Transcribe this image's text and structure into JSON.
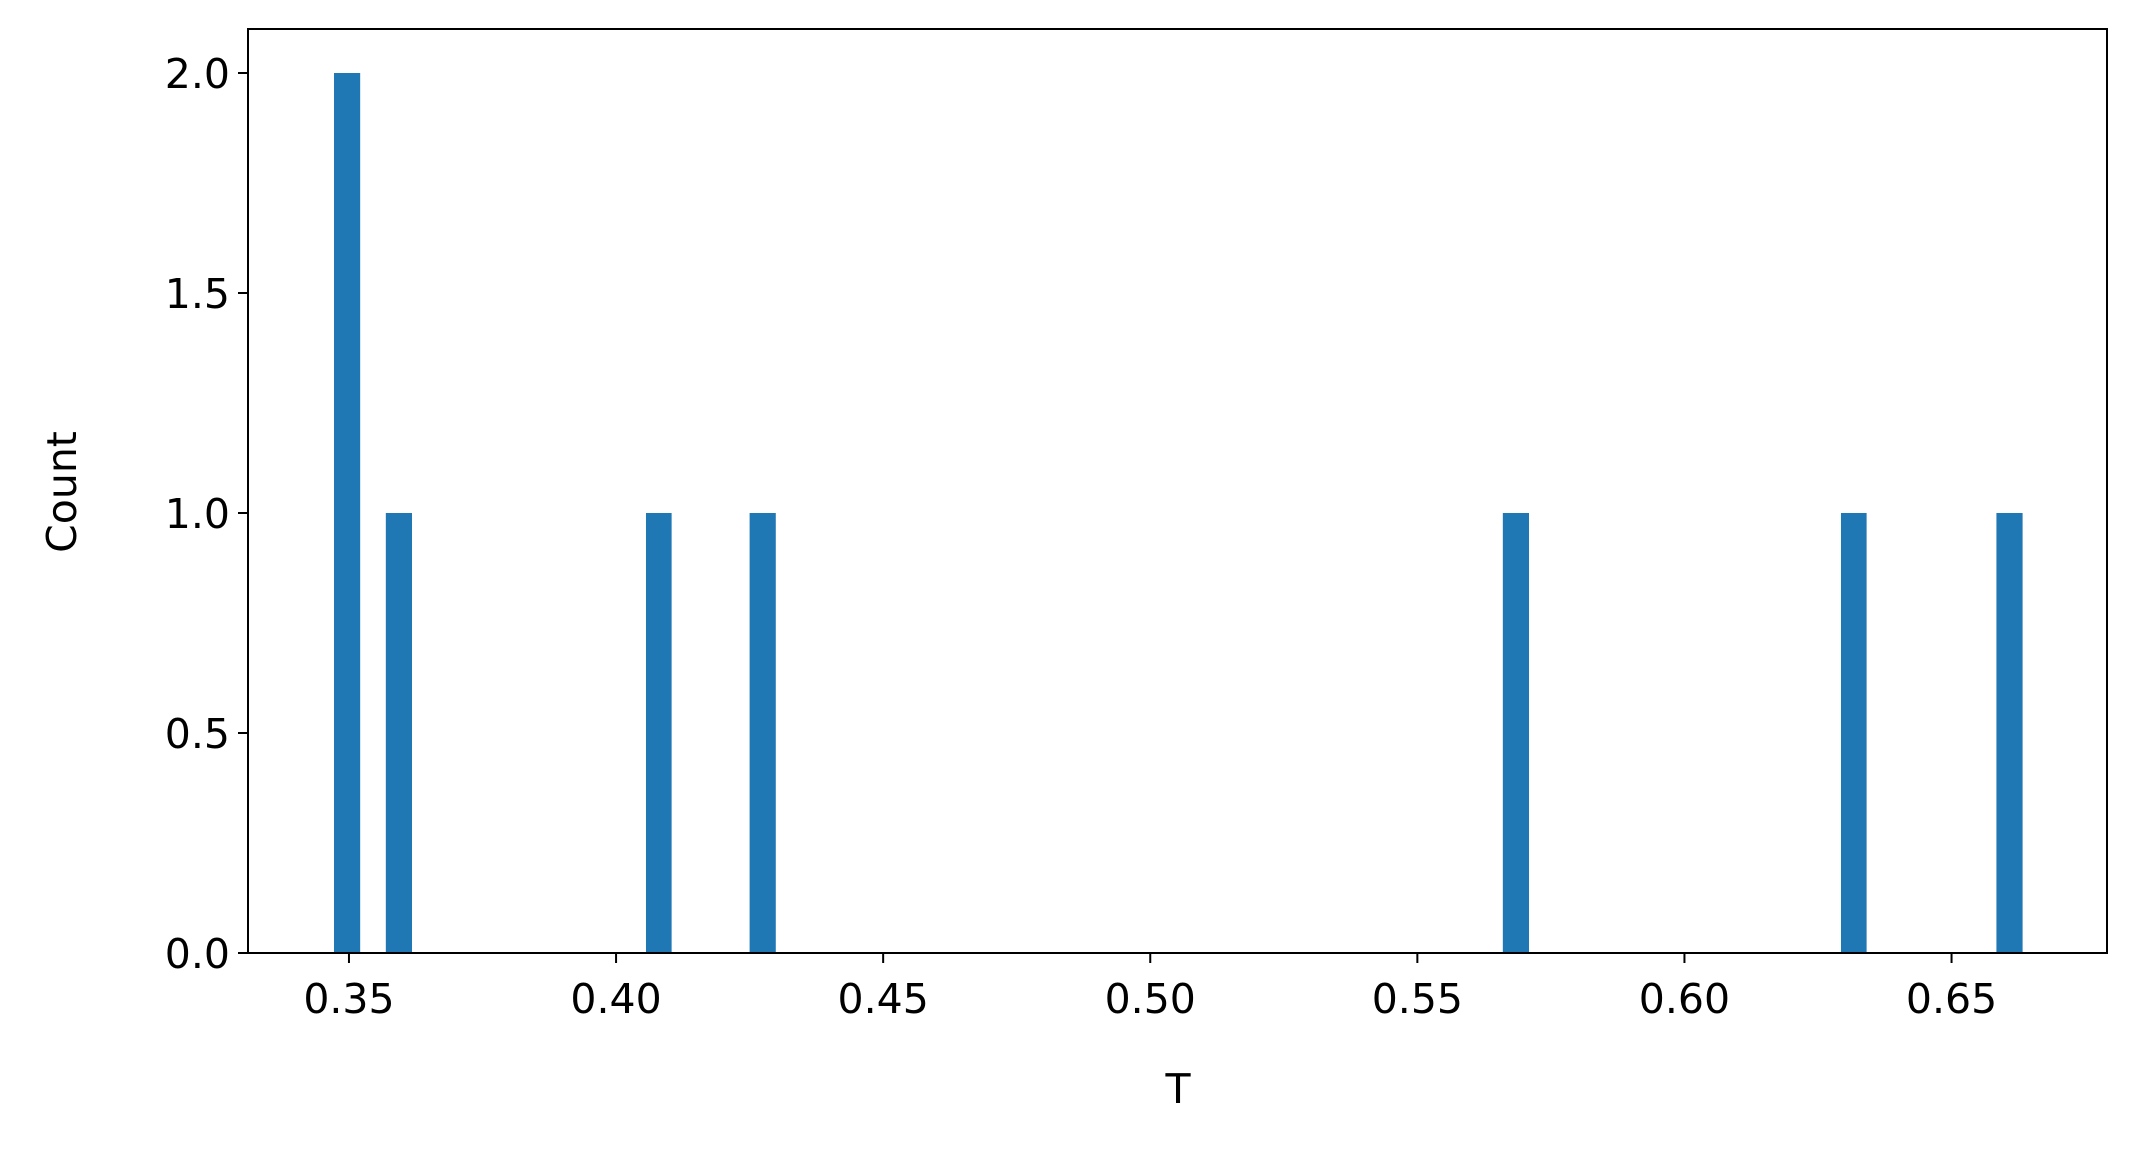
{
  "chart_data": {
    "type": "histogram",
    "xlabel": "T",
    "ylabel": "Count",
    "color": "#1f77b4",
    "bins": [
      0.3472,
      0.3521,
      0.3569,
      0.3618,
      0.3667,
      0.3715,
      0.3764,
      0.3812,
      0.3861,
      0.391,
      0.3958,
      0.4007,
      0.4056,
      0.4104,
      0.4153,
      0.4201,
      0.425,
      0.4299,
      0.4347,
      0.4396,
      0.4445,
      0.4493,
      0.4542,
      0.459,
      0.4639,
      0.4688,
      0.4736,
      0.4785,
      0.4834,
      0.4882,
      0.4931,
      0.498,
      0.5028,
      0.5077,
      0.5125,
      0.5174,
      0.5223,
      0.5271,
      0.532,
      0.5369,
      0.5417,
      0.5466,
      0.5514,
      0.5563,
      0.5612,
      0.566,
      0.5709,
      0.5758,
      0.5806,
      0.5855,
      0.5904,
      0.5952,
      0.6001,
      0.6049,
      0.6098,
      0.6147,
      0.6195,
      0.6244,
      0.6293,
      0.6341,
      0.639,
      0.6438,
      0.6487,
      0.6536,
      0.6584,
      0.6633
    ],
    "counts": [
      2,
      0,
      1,
      0,
      0,
      0,
      0,
      0,
      0,
      0,
      0,
      0,
      1,
      0,
      0,
      0,
      1,
      0,
      0,
      0,
      0,
      0,
      0,
      0,
      0,
      0,
      0,
      0,
      0,
      0,
      0,
      0,
      0,
      0,
      0,
      0,
      0,
      0,
      0,
      0,
      0,
      0,
      0,
      0,
      0,
      1,
      0,
      0,
      0,
      0,
      0,
      0,
      0,
      0,
      0,
      0,
      0,
      0,
      1,
      0,
      0,
      0,
      0,
      0,
      1
    ],
    "xlim": [
      0.3311,
      0.6791
    ],
    "ylim": [
      0,
      2.1
    ],
    "xticks": [
      0.35,
      {
        "value": 0.4,
        "label": "0.40"
      },
      0.45,
      {
        "value": 0.5,
        "label": "0.50"
      },
      0.55,
      {
        "value": 0.6,
        "label": "0.60"
      },
      0.65
    ],
    "yticks": [
      {
        "value": 0,
        "label": "0.0"
      },
      0.5,
      {
        "value": 1,
        "label": "1.0"
      },
      1.5,
      {
        "value": 2,
        "label": "2.0"
      }
    ]
  }
}
